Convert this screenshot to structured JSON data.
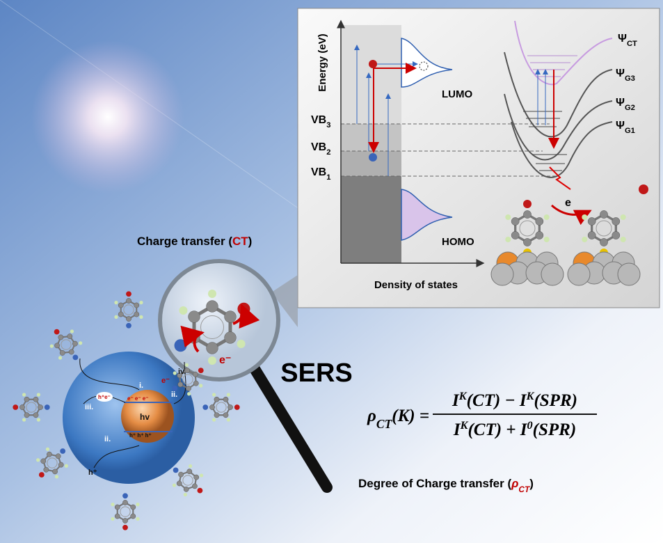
{
  "inset": {
    "y_axis_label": "Energy (eV)",
    "x_axis_label": "Density of states",
    "lumo": "LUMO",
    "homo": "HOMO",
    "levels": [
      {
        "main": "VB",
        "sub": "3"
      },
      {
        "main": "VB",
        "sub": "2"
      },
      {
        "main": "VB",
        "sub": "1"
      }
    ],
    "states": [
      {
        "main": "Ψ",
        "sub": "CT"
      },
      {
        "main": "Ψ",
        "sub": "G3"
      },
      {
        "main": "Ψ",
        "sub": "G2"
      },
      {
        "main": "Ψ",
        "sub": "G1"
      }
    ],
    "electron_label": "e"
  },
  "magnifier": {
    "title": {
      "before": "Charge transfer (",
      "highlight": "CT",
      "after": ")"
    },
    "electron": "e⁻"
  },
  "sers": "SERS",
  "nanoparticle": {
    "step_i": "i.",
    "step_ii_right": "ii.",
    "step_ii_left": "ii.",
    "step_iii": "iii.",
    "step_iv": "iv.",
    "photon": "hv",
    "electron_out": "e⁻",
    "hole_out": "h⁺",
    "electrons": "e⁻  e⁻  e⁻",
    "holes": "h⁺ h⁺ h⁺",
    "trap": "h⁺e⁻"
  },
  "formula": {
    "rho": "ρ",
    "rho_sub": "CT",
    "lhs_rest": "(K) =",
    "num": [
      "I",
      "K",
      "(CT) − I",
      "K",
      "(SPR)"
    ],
    "den": [
      "I",
      "K",
      "(CT) + I",
      "0",
      "(SPR)"
    ]
  },
  "caption": {
    "text": "Degree of Charge transfer (",
    "symbol": "ρ",
    "sub": "CT",
    "close": ")"
  }
}
